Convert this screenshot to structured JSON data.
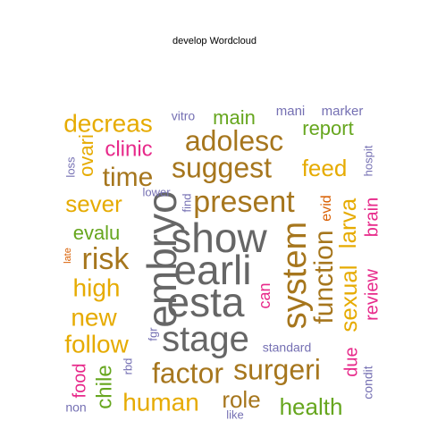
{
  "title": "develop  Wordcloud",
  "colors": {
    "teal": "#1b9e77",
    "orange": "#d95f02",
    "purple": "#7570b3",
    "magenta": "#e7298a",
    "green": "#66a61e",
    "yellow": "#e6ab02",
    "brown": "#a6761d",
    "gray": "#666666"
  },
  "chart_data": {
    "type": "wordcloud",
    "title": "develop  Wordcloud",
    "words": [
      {
        "text": "show",
        "color": "gray"
      },
      {
        "text": "earli",
        "color": "gray"
      },
      {
        "text": "esta",
        "color": "gray"
      },
      {
        "text": "stage",
        "color": "gray"
      },
      {
        "text": "embryo",
        "color": "gray"
      },
      {
        "text": "present",
        "color": "brown"
      },
      {
        "text": "system",
        "color": "brown"
      },
      {
        "text": "suggest",
        "color": "brown"
      },
      {
        "text": "adolesc",
        "color": "brown"
      },
      {
        "text": "factor",
        "color": "brown"
      },
      {
        "text": "surgeri",
        "color": "brown"
      },
      {
        "text": "function",
        "color": "brown"
      },
      {
        "text": "time",
        "color": "brown"
      },
      {
        "text": "risk",
        "color": "brown"
      },
      {
        "text": "larva",
        "color": "yellow"
      },
      {
        "text": "sexual",
        "color": "yellow"
      },
      {
        "text": "human",
        "color": "yellow"
      },
      {
        "text": "follow",
        "color": "yellow"
      },
      {
        "text": "decreas",
        "color": "yellow"
      },
      {
        "text": "high",
        "color": "yellow"
      },
      {
        "text": "new",
        "color": "yellow"
      },
      {
        "text": "feed",
        "color": "yellow"
      },
      {
        "text": "sever",
        "color": "yellow"
      },
      {
        "text": "role",
        "color": "brown"
      },
      {
        "text": "health",
        "color": "green"
      },
      {
        "text": "main",
        "color": "green"
      },
      {
        "text": "report",
        "color": "green"
      },
      {
        "text": "evalu",
        "color": "green"
      },
      {
        "text": "chile",
        "color": "green"
      },
      {
        "text": "clinic",
        "color": "magenta"
      },
      {
        "text": "brain",
        "color": "magenta"
      },
      {
        "text": "review",
        "color": "magenta"
      },
      {
        "text": "food",
        "color": "magenta"
      },
      {
        "text": "due",
        "color": "magenta"
      },
      {
        "text": "can",
        "color": "magenta"
      },
      {
        "text": "ovari",
        "color": "yellow"
      },
      {
        "text": "evid",
        "color": "orange"
      },
      {
        "text": "late",
        "color": "orange"
      },
      {
        "text": "vitro",
        "color": "purple"
      },
      {
        "text": "mani",
        "color": "purple"
      },
      {
        "text": "marker",
        "color": "purple"
      },
      {
        "text": "loss",
        "color": "purple"
      },
      {
        "text": "lower",
        "color": "purple"
      },
      {
        "text": "find",
        "color": "purple"
      },
      {
        "text": "hospit",
        "color": "purple"
      },
      {
        "text": "standard",
        "color": "purple"
      },
      {
        "text": "fgr",
        "color": "purple"
      },
      {
        "text": "rbd",
        "color": "purple"
      },
      {
        "text": "non",
        "color": "purple"
      },
      {
        "text": "like",
        "color": "purple"
      },
      {
        "text": "condit",
        "color": "purple"
      }
    ]
  }
}
